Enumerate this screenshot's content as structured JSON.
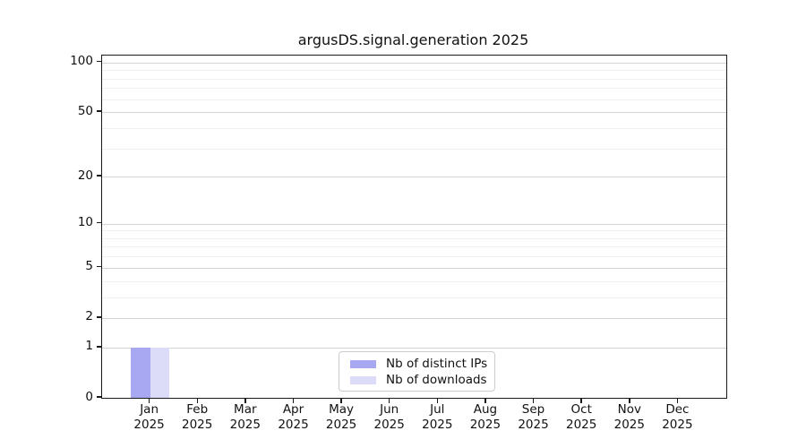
{
  "chart_data": {
    "type": "bar",
    "title": "argusDS.signal.generation 2025",
    "categories": [
      "Jan",
      "Feb",
      "Mar",
      "Apr",
      "May",
      "Jun",
      "Jul",
      "Aug",
      "Sep",
      "Oct",
      "Nov",
      "Dec"
    ],
    "category_year": "2025",
    "series": [
      {
        "name": "Nb of distinct IPs",
        "color": "#a8a8f2",
        "values": [
          1,
          0,
          0,
          0,
          0,
          0,
          0,
          0,
          0,
          0,
          0,
          0
        ]
      },
      {
        "name": "Nb of downloads",
        "color": "#dcdcf8",
        "values": [
          1,
          0,
          0,
          0,
          0,
          0,
          0,
          0,
          0,
          0,
          0,
          0
        ]
      }
    ],
    "xlabel": "",
    "ylabel": "",
    "yscale": "log1p",
    "ylim": [
      0,
      110
    ],
    "ytick_values": [
      0,
      1,
      2,
      5,
      10,
      20,
      50,
      100
    ],
    "ytick_labels": [
      "0",
      "1",
      "2",
      "5",
      "10",
      "20",
      "50",
      "100"
    ],
    "minor_gridline_values": [
      3,
      4,
      6,
      7,
      8,
      9,
      30,
      40,
      60,
      70,
      80,
      90
    ],
    "grid": "horizontal",
    "legend_position": "bottom-center",
    "colors": {
      "major_grid": "#d4d4d4",
      "minor_grid": "#f0f0f0",
      "spine": "#1a1a1a",
      "background": "#ffffff"
    }
  }
}
